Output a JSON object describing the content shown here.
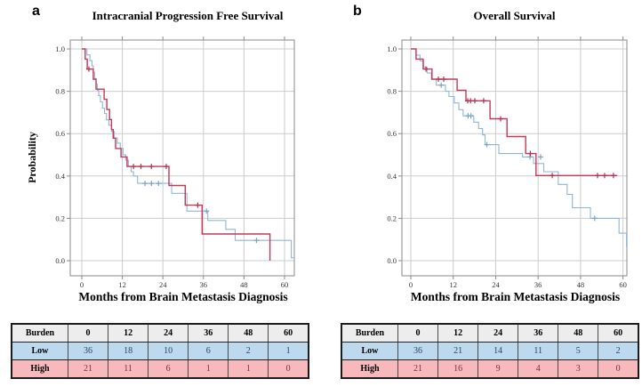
{
  "colors": {
    "grid": "#cccccc",
    "frame": "#8a8a8a",
    "tick_text": "#333333",
    "header_row_bg": "#ededed",
    "low_row_bg": "#bcd9ee",
    "high_row_bg": "#f8b9bd",
    "low_value_text": "#31445f",
    "high_value_text": "#7b313d",
    "low_line": "#8fb6d6",
    "high_line": "#c23a57"
  },
  "chart_data": [
    {
      "type": "line",
      "subtype": "kaplan-meier-step",
      "panel_label": "a",
      "title": "Intracranial Progression Free Survival",
      "xlabel": "Months from Brain Metastasis Diagnosis",
      "ylabel": "Probability",
      "xticks": [
        "0",
        "12",
        "24",
        "36",
        "48",
        "60"
      ],
      "yticks": [
        "0.0",
        "0.2",
        "0.4",
        "0.6",
        "0.8",
        "1.0"
      ],
      "xlim": [
        0,
        60
      ],
      "ylim": [
        0.0,
        1.0
      ],
      "grid": true,
      "legend_position": "none",
      "series": [
        {
          "name": "Low",
          "color": "#8fb6d6",
          "censor_color": "#7aa2c4",
          "width": 1.1,
          "steps": [
            [
              0,
              1.0
            ],
            [
              1.5,
              0.972
            ],
            [
              2.4,
              0.945
            ],
            [
              3.0,
              0.92
            ],
            [
              3.4,
              0.89
            ],
            [
              3.8,
              0.86
            ],
            [
              4.2,
              0.833
            ],
            [
              4.6,
              0.805
            ],
            [
              5.0,
              0.78
            ],
            [
              5.5,
              0.75
            ],
            [
              6.1,
              0.72
            ],
            [
              6.7,
              0.695
            ],
            [
              7.3,
              0.665
            ],
            [
              8.0,
              0.64
            ],
            [
              8.8,
              0.61
            ],
            [
              9.6,
              0.58
            ],
            [
              10.5,
              0.555
            ],
            [
              11.4,
              0.53
            ],
            [
              12.2,
              0.5
            ],
            [
              13.0,
              0.475
            ],
            [
              13.8,
              0.445
            ],
            [
              14.6,
              0.42
            ],
            [
              15.3,
              0.4
            ],
            [
              16.5,
              0.365
            ],
            [
              26.6,
              0.318
            ],
            [
              31.1,
              0.234
            ],
            [
              37.3,
              0.19
            ],
            [
              42.6,
              0.148
            ],
            [
              45.4,
              0.096
            ],
            [
              62.0,
              0.014
            ]
          ],
          "end": 62.6,
          "censors": [
            [
              18.7,
              0.365
            ],
            [
              20.6,
              0.365
            ],
            [
              22.7,
              0.365
            ],
            [
              36.9,
              0.234
            ],
            [
              51.7,
              0.096
            ]
          ]
        },
        {
          "name": "High",
          "color": "#c23a57",
          "censor_color": "#b13050",
          "width": 1.4,
          "steps": [
            [
              0,
              1.0
            ],
            [
              1.0,
              0.952
            ],
            [
              1.6,
              0.905
            ],
            [
              3.4,
              0.857
            ],
            [
              4.2,
              0.81
            ],
            [
              6.6,
              0.762
            ],
            [
              7.4,
              0.714
            ],
            [
              8.2,
              0.667
            ],
            [
              8.8,
              0.619
            ],
            [
              9.3,
              0.578
            ],
            [
              10.0,
              0.53
            ],
            [
              11.6,
              0.49
            ],
            [
              13.4,
              0.445
            ],
            [
              25.8,
              0.355
            ],
            [
              30.6,
              0.262
            ],
            [
              35.6,
              0.126
            ],
            [
              55.7,
              0.0
            ]
          ],
          "end": 55.7,
          "censors": [
            [
              2.1,
              0.905
            ],
            [
              15.3,
              0.445
            ],
            [
              17.5,
              0.445
            ],
            [
              20.6,
              0.445
            ],
            [
              25.0,
              0.445
            ],
            [
              34.3,
              0.262
            ]
          ]
        }
      ],
      "risk_table": {
        "header": [
          "Burden",
          "0",
          "12",
          "24",
          "36",
          "48",
          "60"
        ],
        "rows": [
          {
            "label": "Low",
            "values": [
              "36",
              "18",
              "10",
              "6",
              "2",
              "1"
            ]
          },
          {
            "label": "High",
            "values": [
              "21",
              "11",
              "6",
              "1",
              "1",
              "0"
            ]
          }
        ]
      }
    },
    {
      "type": "line",
      "subtype": "kaplan-meier-step",
      "panel_label": "b",
      "title": "Overall Survival",
      "xlabel": "Months from Brain Metastasis Diagnosis",
      "ylabel": "",
      "xticks": [
        "0",
        "12",
        "24",
        "36",
        "48",
        "60"
      ],
      "yticks": [
        "0.0",
        "0.2",
        "0.4",
        "0.6",
        "0.8",
        "1.0"
      ],
      "xlim": [
        0,
        60
      ],
      "ylim": [
        0.0,
        1.0
      ],
      "grid": true,
      "legend_position": "none",
      "series": [
        {
          "name": "Low",
          "color": "#8fb6d6",
          "censor_color": "#7aa2c4",
          "width": 1.1,
          "steps": [
            [
              0,
              1.0
            ],
            [
              1.5,
              0.971
            ],
            [
              2.6,
              0.943
            ],
            [
              3.6,
              0.914
            ],
            [
              4.6,
              0.886
            ],
            [
              5.8,
              0.857
            ],
            [
              7.2,
              0.829
            ],
            [
              9.8,
              0.8
            ],
            [
              10.8,
              0.775
            ],
            [
              12.3,
              0.745
            ],
            [
              13.6,
              0.713
            ],
            [
              14.8,
              0.684
            ],
            [
              17.8,
              0.654
            ],
            [
              19.2,
              0.624
            ],
            [
              20.3,
              0.594
            ],
            [
              21.0,
              0.548
            ],
            [
              24.9,
              0.506
            ],
            [
              31.6,
              0.49
            ],
            [
              34.7,
              0.459
            ],
            [
              37.6,
              0.42
            ],
            [
              41.7,
              0.36
            ],
            [
              44.2,
              0.313
            ],
            [
              45.7,
              0.25
            ],
            [
              50.8,
              0.2
            ],
            [
              58.9,
              0.13
            ],
            [
              61.0,
              0.067
            ]
          ],
          "end": 61.1,
          "censors": [
            [
              8.6,
              0.829
            ],
            [
              16.2,
              0.684
            ],
            [
              17.0,
              0.684
            ],
            [
              21.5,
              0.548
            ],
            [
              33.7,
              0.49
            ],
            [
              36.7,
              0.49
            ],
            [
              52.0,
              0.2
            ]
          ]
        },
        {
          "name": "High",
          "color": "#c23a57",
          "censor_color": "#b13050",
          "width": 1.4,
          "steps": [
            [
              0,
              1.0
            ],
            [
              1.5,
              0.952
            ],
            [
              3.5,
              0.905
            ],
            [
              6.0,
              0.857
            ],
            [
              13.1,
              0.805
            ],
            [
              15.6,
              0.755
            ],
            [
              22.4,
              0.67
            ],
            [
              27.2,
              0.586
            ],
            [
              32.5,
              0.506
            ],
            [
              35.4,
              0.402
            ]
          ],
          "end": 58.4,
          "censors": [
            [
              4.3,
              0.905
            ],
            [
              7.8,
              0.857
            ],
            [
              9.3,
              0.857
            ],
            [
              16.1,
              0.755
            ],
            [
              16.9,
              0.755
            ],
            [
              18.1,
              0.755
            ],
            [
              20.6,
              0.755
            ],
            [
              25.4,
              0.67
            ],
            [
              33.8,
              0.506
            ],
            [
              40.0,
              0.402
            ],
            [
              52.8,
              0.402
            ],
            [
              54.8,
              0.402
            ],
            [
              57.3,
              0.402
            ]
          ]
        }
      ],
      "risk_table": {
        "header": [
          "Burden",
          "0",
          "12",
          "24",
          "36",
          "48",
          "60"
        ],
        "rows": [
          {
            "label": "Low",
            "values": [
              "36",
              "21",
              "14",
              "11",
              "5",
              "2"
            ]
          },
          {
            "label": "High",
            "values": [
              "21",
              "16",
              "9",
              "4",
              "3",
              "0"
            ]
          }
        ]
      }
    }
  ]
}
